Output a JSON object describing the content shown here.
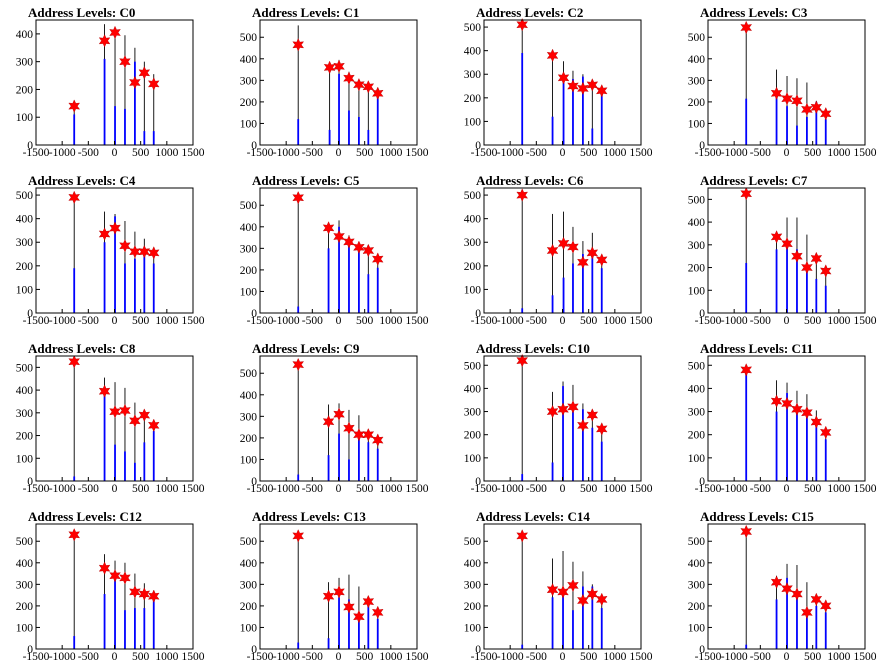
{
  "page": {
    "title_prefix": "Address Levels: "
  },
  "axis": {
    "xlim": [
      -1500,
      1500
    ],
    "xticks": [
      -1500,
      -1000,
      -500,
      0,
      500,
      1000,
      1500
    ],
    "xtick_labels": [
      "-1500",
      "-1000",
      "-500",
      "0",
      "500",
      "1000",
      "1500"
    ]
  },
  "colors": {
    "hist": "#0000ff",
    "stem": "#000000",
    "marker": "#ff0000",
    "frame": "#000000"
  },
  "chart_data": [
    {
      "type": "bar",
      "title": "Address Levels: C0",
      "ylim": [
        0,
        450
      ],
      "yticks": [
        100,
        200,
        300,
        400
      ],
      "peaks": [
        {
          "x": -770,
          "y": 140,
          "stem": 150,
          "bar": 110
        },
        {
          "x": -190,
          "y": 375,
          "stem": 435,
          "bar": 310
        },
        {
          "x": 10,
          "y": 405,
          "stem": 415,
          "bar": 140
        },
        {
          "x": 200,
          "y": 300,
          "stem": 395,
          "bar": 130
        },
        {
          "x": 390,
          "y": 225,
          "stem": 350,
          "bar": 300
        },
        {
          "x": 570,
          "y": 260,
          "stem": 300,
          "bar": 50
        },
        {
          "x": 750,
          "y": 220,
          "stem": 255,
          "bar": 50
        }
      ]
    },
    {
      "type": "bar",
      "title": "Address Levels: C1",
      "ylim": [
        0,
        580
      ],
      "yticks": [
        100,
        200,
        300,
        400,
        500
      ],
      "peaks": [
        {
          "x": -770,
          "y": 465,
          "stem": 555,
          "bar": 120
        },
        {
          "x": -170,
          "y": 360,
          "stem": 380,
          "bar": 70
        },
        {
          "x": 10,
          "y": 365,
          "stem": 395,
          "bar": 330
        },
        {
          "x": 200,
          "y": 310,
          "stem": 340,
          "bar": 160
        },
        {
          "x": 390,
          "y": 280,
          "stem": 300,
          "bar": 130
        },
        {
          "x": 570,
          "y": 270,
          "stem": 290,
          "bar": 70
        },
        {
          "x": 750,
          "y": 240,
          "stem": 260,
          "bar": 230
        }
      ]
    },
    {
      "type": "bar",
      "title": "Address Levels: C2",
      "ylim": [
        0,
        530
      ],
      "yticks": [
        100,
        200,
        300,
        400,
        500
      ],
      "peaks": [
        {
          "x": -770,
          "y": 510,
          "stem": 520,
          "bar": 390
        },
        {
          "x": -190,
          "y": 380,
          "stem": 390,
          "bar": 120
        },
        {
          "x": 20,
          "y": 285,
          "stem": 355,
          "bar": 270
        },
        {
          "x": 200,
          "y": 250,
          "stem": 315,
          "bar": 280
        },
        {
          "x": 390,
          "y": 240,
          "stem": 300,
          "bar": 290
        },
        {
          "x": 570,
          "y": 255,
          "stem": 270,
          "bar": 70
        },
        {
          "x": 750,
          "y": 230,
          "stem": 240,
          "bar": 215
        }
      ]
    },
    {
      "type": "bar",
      "title": "Address Levels: C3",
      "ylim": [
        0,
        580
      ],
      "yticks": [
        100,
        200,
        300,
        400,
        500
      ],
      "peaks": [
        {
          "x": -770,
          "y": 545,
          "stem": 555,
          "bar": 215
        },
        {
          "x": -190,
          "y": 240,
          "stem": 350,
          "bar": 260
        },
        {
          "x": 10,
          "y": 215,
          "stem": 320,
          "bar": 180
        },
        {
          "x": 200,
          "y": 205,
          "stem": 310,
          "bar": 90
        },
        {
          "x": 390,
          "y": 165,
          "stem": 290,
          "bar": 130
        },
        {
          "x": 570,
          "y": 175,
          "stem": 205,
          "bar": 200
        },
        {
          "x": 750,
          "y": 145,
          "stem": 155,
          "bar": 120
        }
      ]
    },
    {
      "type": "bar",
      "title": "Address Levels: C4",
      "ylim": [
        0,
        530
      ],
      "yticks": [
        100,
        200,
        300,
        400,
        500
      ],
      "peaks": [
        {
          "x": -770,
          "y": 490,
          "stem": 505,
          "bar": 190
        },
        {
          "x": -190,
          "y": 335,
          "stem": 430,
          "bar": 300
        },
        {
          "x": 10,
          "y": 360,
          "stem": 420,
          "bar": 410
        },
        {
          "x": 200,
          "y": 285,
          "stem": 390,
          "bar": 210
        },
        {
          "x": 390,
          "y": 260,
          "stem": 345,
          "bar": 230
        },
        {
          "x": 570,
          "y": 260,
          "stem": 315,
          "bar": 270
        },
        {
          "x": 750,
          "y": 255,
          "stem": 265,
          "bar": 210
        }
      ]
    },
    {
      "type": "bar",
      "title": "Address Levels: C5",
      "ylim": [
        0,
        580
      ],
      "yticks": [
        100,
        200,
        300,
        400,
        500
      ],
      "peaks": [
        {
          "x": -770,
          "y": 535,
          "stem": 545,
          "bar": 30
        },
        {
          "x": -190,
          "y": 395,
          "stem": 400,
          "bar": 300
        },
        {
          "x": 10,
          "y": 355,
          "stem": 430,
          "bar": 400
        },
        {
          "x": 200,
          "y": 330,
          "stem": 360,
          "bar": 320
        },
        {
          "x": 390,
          "y": 305,
          "stem": 330,
          "bar": 300
        },
        {
          "x": 570,
          "y": 290,
          "stem": 315,
          "bar": 180
        },
        {
          "x": 750,
          "y": 250,
          "stem": 265,
          "bar": 210
        }
      ]
    },
    {
      "type": "bar",
      "title": "Address Levels: C6",
      "ylim": [
        0,
        530
      ],
      "yticks": [
        100,
        200,
        300,
        400,
        500
      ],
      "peaks": [
        {
          "x": -770,
          "y": 500,
          "stem": 505,
          "bar": 20
        },
        {
          "x": -190,
          "y": 265,
          "stem": 420,
          "bar": 75
        },
        {
          "x": 20,
          "y": 295,
          "stem": 430,
          "bar": 150
        },
        {
          "x": 200,
          "y": 280,
          "stem": 365,
          "bar": 210
        },
        {
          "x": 390,
          "y": 215,
          "stem": 305,
          "bar": 250
        },
        {
          "x": 570,
          "y": 255,
          "stem": 340,
          "bar": 270
        },
        {
          "x": 750,
          "y": 225,
          "stem": 230,
          "bar": 190
        }
      ]
    },
    {
      "type": "bar",
      "title": "Address Levels: C7",
      "ylim": [
        0,
        550
      ],
      "yticks": [
        100,
        200,
        300,
        400,
        500
      ],
      "peaks": [
        {
          "x": -770,
          "y": 525,
          "stem": 530,
          "bar": 220
        },
        {
          "x": -190,
          "y": 335,
          "stem": 355,
          "bar": 280
        },
        {
          "x": 10,
          "y": 305,
          "stem": 420,
          "bar": 310
        },
        {
          "x": 200,
          "y": 250,
          "stem": 420,
          "bar": 280
        },
        {
          "x": 390,
          "y": 200,
          "stem": 345,
          "bar": 210
        },
        {
          "x": 570,
          "y": 240,
          "stem": 255,
          "bar": 150
        },
        {
          "x": 750,
          "y": 185,
          "stem": 190,
          "bar": 120
        }
      ]
    },
    {
      "type": "bar",
      "title": "Address Levels: C8",
      "ylim": [
        0,
        550
      ],
      "yticks": [
        100,
        200,
        300,
        400,
        500
      ],
      "peaks": [
        {
          "x": -770,
          "y": 525,
          "stem": 535,
          "bar": 20
        },
        {
          "x": -190,
          "y": 395,
          "stem": 455,
          "bar": 390
        },
        {
          "x": 10,
          "y": 305,
          "stem": 435,
          "bar": 160
        },
        {
          "x": 200,
          "y": 310,
          "stem": 410,
          "bar": 130
        },
        {
          "x": 390,
          "y": 265,
          "stem": 345,
          "bar": 80
        },
        {
          "x": 570,
          "y": 290,
          "stem": 310,
          "bar": 170
        },
        {
          "x": 750,
          "y": 245,
          "stem": 265,
          "bar": 220
        }
      ]
    },
    {
      "type": "bar",
      "title": "Address Levels: C9",
      "ylim": [
        0,
        580
      ],
      "yticks": [
        100,
        200,
        300,
        400,
        500
      ],
      "peaks": [
        {
          "x": -770,
          "y": 540,
          "stem": 550,
          "bar": 30
        },
        {
          "x": -190,
          "y": 275,
          "stem": 355,
          "bar": 120
        },
        {
          "x": 10,
          "y": 310,
          "stem": 360,
          "bar": 220
        },
        {
          "x": 200,
          "y": 245,
          "stem": 330,
          "bar": 100
        },
        {
          "x": 390,
          "y": 215,
          "stem": 305,
          "bar": 200
        },
        {
          "x": 570,
          "y": 215,
          "stem": 230,
          "bar": 180
        },
        {
          "x": 750,
          "y": 190,
          "stem": 200,
          "bar": 150
        }
      ]
    },
    {
      "type": "bar",
      "title": "Address Levels: C10",
      "ylim": [
        0,
        540
      ],
      "yticks": [
        100,
        200,
        300,
        400,
        500
      ],
      "peaks": [
        {
          "x": -770,
          "y": 520,
          "stem": 525,
          "bar": 30
        },
        {
          "x": -190,
          "y": 300,
          "stem": 385,
          "bar": 80
        },
        {
          "x": 10,
          "y": 310,
          "stem": 430,
          "bar": 410
        },
        {
          "x": 200,
          "y": 320,
          "stem": 415,
          "bar": 300
        },
        {
          "x": 390,
          "y": 240,
          "stem": 335,
          "bar": 310
        },
        {
          "x": 570,
          "y": 285,
          "stem": 290,
          "bar": 230
        },
        {
          "x": 750,
          "y": 225,
          "stem": 230,
          "bar": 170
        }
      ]
    },
    {
      "type": "bar",
      "title": "Address Levels: C11",
      "ylim": [
        0,
        540
      ],
      "yticks": [
        100,
        200,
        300,
        400,
        500
      ],
      "peaks": [
        {
          "x": -770,
          "y": 480,
          "stem": 495,
          "bar": 470
        },
        {
          "x": -190,
          "y": 345,
          "stem": 435,
          "bar": 300
        },
        {
          "x": 10,
          "y": 335,
          "stem": 425,
          "bar": 380
        },
        {
          "x": 200,
          "y": 310,
          "stem": 390,
          "bar": 330
        },
        {
          "x": 390,
          "y": 295,
          "stem": 375,
          "bar": 310
        },
        {
          "x": 570,
          "y": 255,
          "stem": 305,
          "bar": 260
        },
        {
          "x": 750,
          "y": 210,
          "stem": 225,
          "bar": 180
        }
      ]
    },
    {
      "type": "bar",
      "title": "Address Levels: C12",
      "ylim": [
        0,
        580
      ],
      "yticks": [
        100,
        200,
        300,
        400,
        500
      ],
      "peaks": [
        {
          "x": -770,
          "y": 530,
          "stem": 540,
          "bar": 60
        },
        {
          "x": -190,
          "y": 375,
          "stem": 440,
          "bar": 255
        },
        {
          "x": 10,
          "y": 340,
          "stem": 410,
          "bar": 345
        },
        {
          "x": 200,
          "y": 330,
          "stem": 400,
          "bar": 180
        },
        {
          "x": 390,
          "y": 265,
          "stem": 350,
          "bar": 190
        },
        {
          "x": 570,
          "y": 255,
          "stem": 305,
          "bar": 190
        },
        {
          "x": 750,
          "y": 245,
          "stem": 270,
          "bar": 230
        }
      ]
    },
    {
      "type": "bar",
      "title": "Address Levels: C13",
      "ylim": [
        0,
        580
      ],
      "yticks": [
        100,
        200,
        300,
        400,
        500
      ],
      "peaks": [
        {
          "x": -770,
          "y": 525,
          "stem": 530,
          "bar": 30
        },
        {
          "x": -190,
          "y": 245,
          "stem": 310,
          "bar": 50
        },
        {
          "x": 10,
          "y": 265,
          "stem": 330,
          "bar": 240
        },
        {
          "x": 200,
          "y": 195,
          "stem": 345,
          "bar": 230
        },
        {
          "x": 390,
          "y": 150,
          "stem": 290,
          "bar": 130
        },
        {
          "x": 570,
          "y": 220,
          "stem": 230,
          "bar": 210
        },
        {
          "x": 750,
          "y": 170,
          "stem": 180,
          "bar": 140
        }
      ]
    },
    {
      "type": "bar",
      "title": "Address Levels: C14",
      "ylim": [
        0,
        580
      ],
      "yticks": [
        100,
        200,
        300,
        400,
        500
      ],
      "peaks": [
        {
          "x": -770,
          "y": 525,
          "stem": 530,
          "bar": 20
        },
        {
          "x": -190,
          "y": 275,
          "stem": 420,
          "bar": 240
        },
        {
          "x": 10,
          "y": 265,
          "stem": 455,
          "bar": 250
        },
        {
          "x": 200,
          "y": 295,
          "stem": 405,
          "bar": 180
        },
        {
          "x": 390,
          "y": 225,
          "stem": 360,
          "bar": 290
        },
        {
          "x": 570,
          "y": 255,
          "stem": 300,
          "bar": 290
        },
        {
          "x": 750,
          "y": 230,
          "stem": 245,
          "bar": 190
        }
      ]
    },
    {
      "type": "bar",
      "title": "Address Levels: C15",
      "ylim": [
        0,
        580
      ],
      "yticks": [
        100,
        200,
        300,
        400,
        500
      ],
      "peaks": [
        {
          "x": -770,
          "y": 545,
          "stem": 555,
          "bar": 20
        },
        {
          "x": -190,
          "y": 310,
          "stem": 340,
          "bar": 230
        },
        {
          "x": 10,
          "y": 280,
          "stem": 395,
          "bar": 330
        },
        {
          "x": 200,
          "y": 255,
          "stem": 390,
          "bar": 240
        },
        {
          "x": 390,
          "y": 170,
          "stem": 310,
          "bar": 160
        },
        {
          "x": 570,
          "y": 230,
          "stem": 245,
          "bar": 200
        },
        {
          "x": 750,
          "y": 200,
          "stem": 215,
          "bar": 170
        }
      ]
    }
  ]
}
